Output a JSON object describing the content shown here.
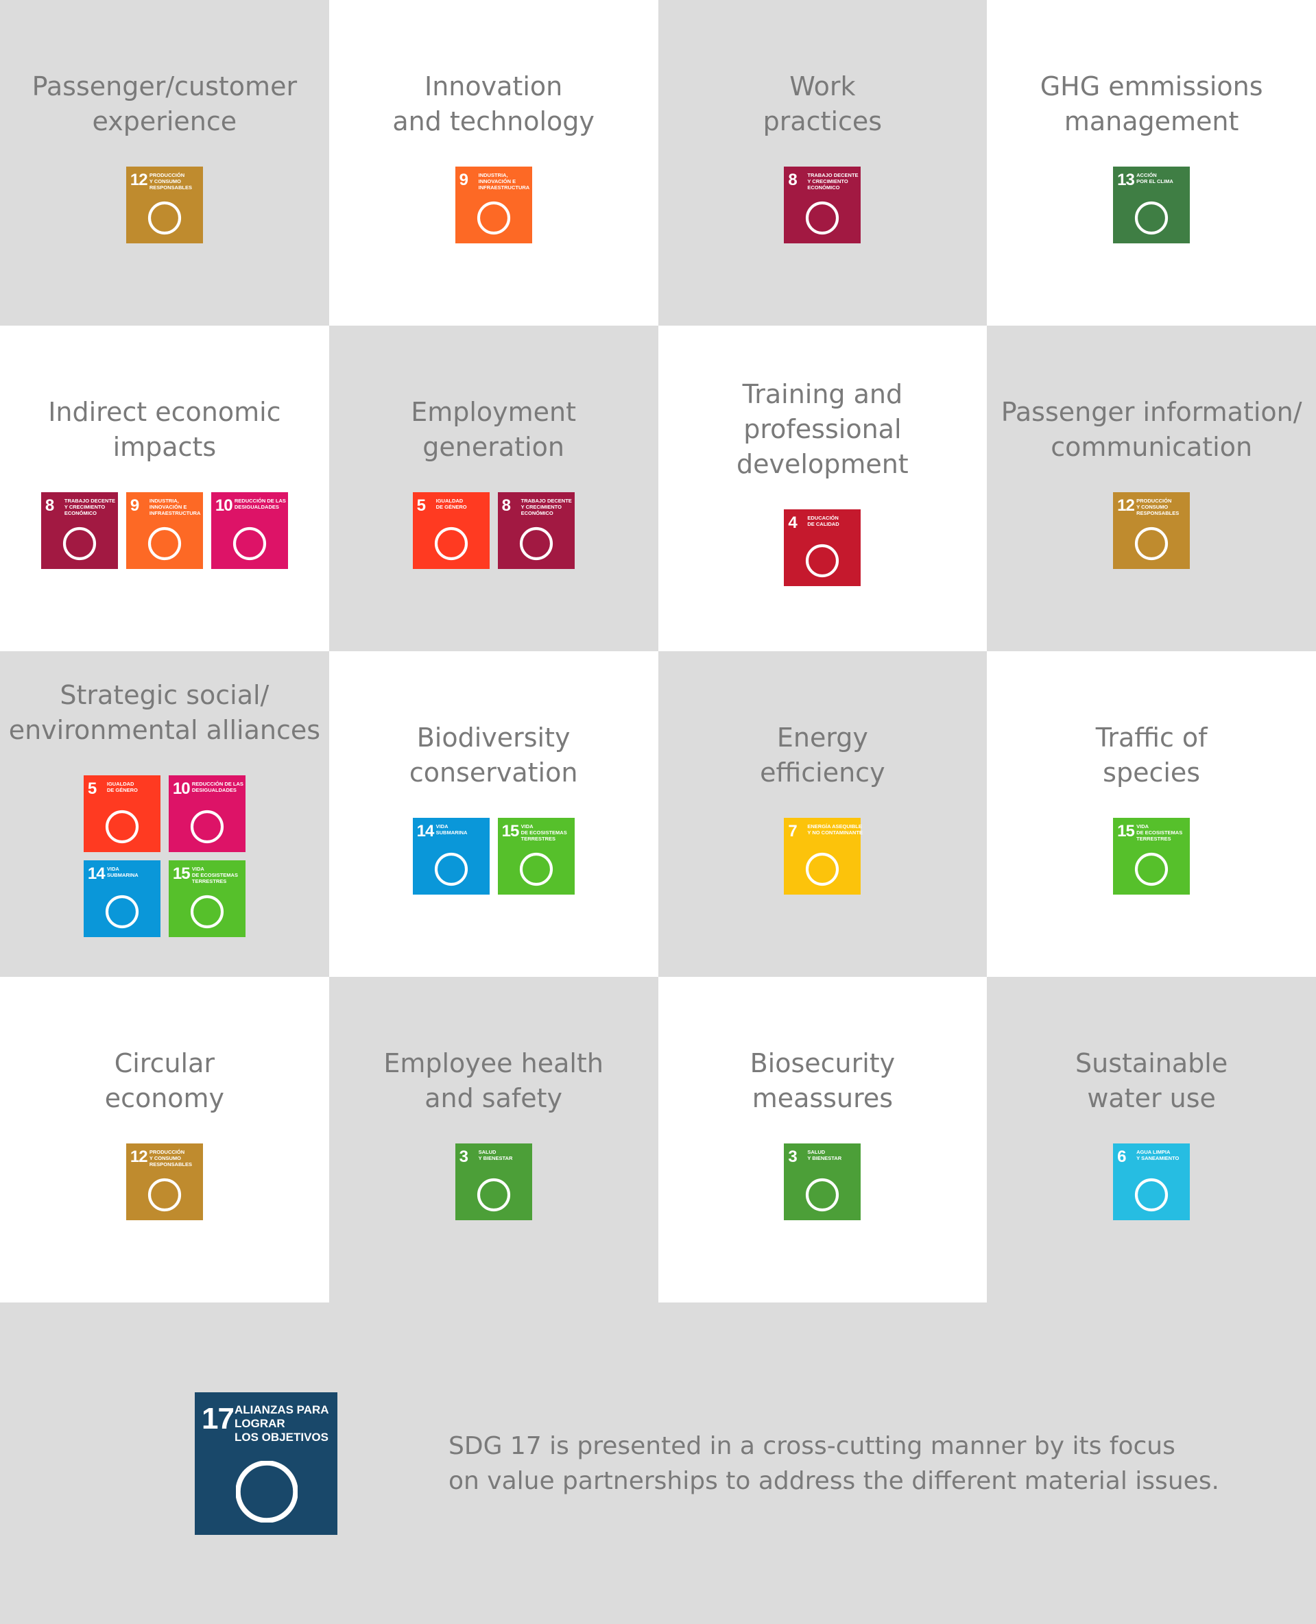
{
  "tiles": [
    {
      "title": [
        "Passenger/customer",
        "experience"
      ],
      "icons": [
        {
          "number": 12,
          "color": "#bf8b2e",
          "label": [
            "PRODUCCIÓN",
            "Y CONSUMO",
            "RESPONSABLES"
          ]
        }
      ]
    },
    {
      "title": [
        "Innovation",
        "and technology"
      ],
      "icons": [
        {
          "number": 9,
          "color": "#fd6925",
          "label": [
            "INDUSTRIA,",
            "INNOVACIÓN E",
            "INFRAESTRUCTURA"
          ]
        }
      ]
    },
    {
      "title": [
        "Work",
        "practices"
      ],
      "icons": [
        {
          "number": 8,
          "color": "#a21942",
          "label": [
            "TRABAJO DECENTE",
            "Y CRECIMIENTO",
            "ECONÓMICO"
          ]
        }
      ]
    },
    {
      "title": [
        "GHG emmissions",
        "management"
      ],
      "icons": [
        {
          "number": 13,
          "color": "#3f7e44",
          "label": [
            "ACCIÓN",
            "POR EL CLIMA"
          ]
        }
      ]
    },
    {
      "title": [
        "Indirect economic",
        "impacts"
      ],
      "icons": [
        {
          "number": 8,
          "color": "#a21942",
          "label": [
            "TRABAJO DECENTE",
            "Y CRECIMIENTO",
            "ECONÓMICO"
          ]
        },
        {
          "number": 9,
          "color": "#fd6925",
          "label": [
            "INDUSTRIA,",
            "INNOVACIÓN E",
            "INFRAESTRUCTURA"
          ]
        },
        {
          "number": 10,
          "color": "#dd1367",
          "label": [
            "REDUCCIÓN DE LAS",
            "DESIGUALDADES"
          ]
        }
      ]
    },
    {
      "title": [
        "Employment",
        "generation"
      ],
      "icons": [
        {
          "number": 5,
          "color": "#ff3a21",
          "label": [
            "IGUALDAD",
            "DE GÉNERO"
          ]
        },
        {
          "number": 8,
          "color": "#a21942",
          "label": [
            "TRABAJO DECENTE",
            "Y CRECIMIENTO",
            "ECONÓMICO"
          ]
        }
      ]
    },
    {
      "title": [
        "Training and",
        "professional",
        "development"
      ],
      "icons": [
        {
          "number": 4,
          "color": "#c5192d",
          "label": [
            "EDUCACIÓN",
            "DE CALIDAD"
          ]
        }
      ]
    },
    {
      "title": [
        "Passenger information/",
        "communication"
      ],
      "icons": [
        {
          "number": 12,
          "color": "#bf8b2e",
          "label": [
            "PRODUCCIÓN",
            "Y CONSUMO",
            "RESPONSABLES"
          ]
        }
      ]
    },
    {
      "title": [
        "Strategic social/",
        "environmental alliances"
      ],
      "icons": [
        {
          "number": 5,
          "color": "#ff3a21",
          "label": [
            "IGUALDAD",
            "DE GÉNERO"
          ]
        },
        {
          "number": 10,
          "color": "#dd1367",
          "label": [
            "REDUCCIÓN DE LAS",
            "DESIGUALDADES"
          ]
        },
        {
          "number": 14,
          "color": "#0a97d9",
          "label": [
            "VIDA",
            "SUBMARINA"
          ]
        },
        {
          "number": 15,
          "color": "#56c02b",
          "label": [
            "VIDA",
            "DE ECOSISTEMAS",
            "TERRESTRES"
          ]
        }
      ]
    },
    {
      "title": [
        "Biodiversity",
        "conservation"
      ],
      "icons": [
        {
          "number": 14,
          "color": "#0a97d9",
          "label": [
            "VIDA",
            "SUBMARINA"
          ]
        },
        {
          "number": 15,
          "color": "#56c02b",
          "label": [
            "VIDA",
            "DE ECOSISTEMAS",
            "TERRESTRES"
          ]
        }
      ]
    },
    {
      "title": [
        "Energy",
        "efficiency"
      ],
      "icons": [
        {
          "number": 7,
          "color": "#fcc30b",
          "label": [
            "ENERGÍA ASEQUIBLE",
            "Y NO CONTAMINANTE"
          ]
        }
      ]
    },
    {
      "title": [
        "Traffic of",
        "species"
      ],
      "icons": [
        {
          "number": 15,
          "color": "#56c02b",
          "label": [
            "VIDA",
            "DE ECOSISTEMAS",
            "TERRESTRES"
          ]
        }
      ]
    },
    {
      "title": [
        "Circular",
        "economy"
      ],
      "icons": [
        {
          "number": 12,
          "color": "#bf8b2e",
          "label": [
            "PRODUCCIÓN",
            "Y CONSUMO",
            "RESPONSABLES"
          ]
        }
      ]
    },
    {
      "title": [
        "Employee health",
        "and safety"
      ],
      "icons": [
        {
          "number": 3,
          "color": "#4c9f38",
          "label": [
            "SALUD",
            "Y BIENESTAR"
          ]
        }
      ]
    },
    {
      "title": [
        "Biosecurity",
        "meassures"
      ],
      "icons": [
        {
          "number": 3,
          "color": "#4c9f38",
          "label": [
            "SALUD",
            "Y BIENESTAR"
          ]
        }
      ]
    },
    {
      "title": [
        "Sustainable",
        "water use"
      ],
      "icons": [
        {
          "number": 6,
          "color": "#26bde2",
          "label": [
            "AGUA LIMPIA",
            "Y SANEAMIENTO"
          ]
        }
      ]
    }
  ],
  "footer": {
    "icon": {
      "number": 17,
      "color": "#19486a",
      "label": [
        "ALIANZAS PARA",
        "LOGRAR",
        "LOS OBJETIVOS"
      ]
    },
    "text": [
      "SDG 17 is presented in a cross-cutting manner by its focus",
      "on value partnerships to address the different material issues."
    ]
  }
}
